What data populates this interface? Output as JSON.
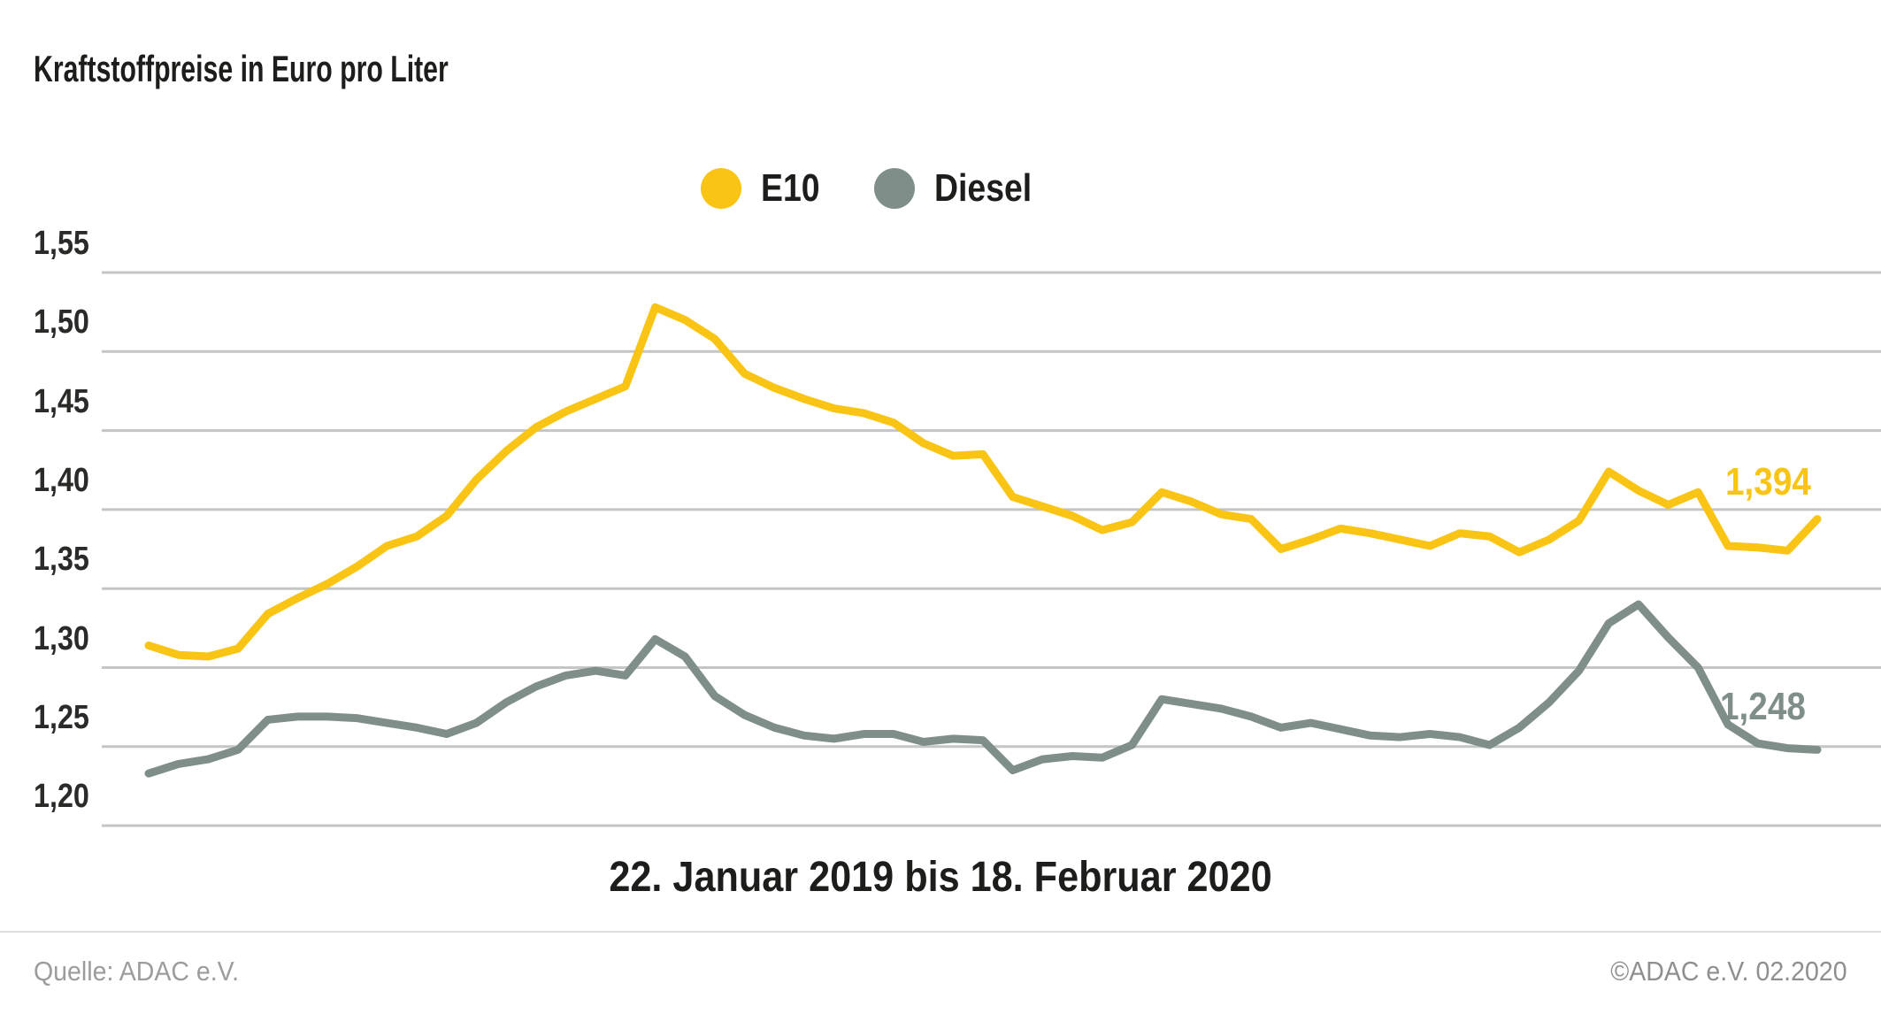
{
  "title": "Kraftstoffpreise in Euro pro Liter",
  "x_caption": "22. Januar 2019 bis 18. Februar 2020",
  "footer": {
    "source": "Quelle: ADAC e.V.",
    "copyright": "©ADAC e.V.  02.2020"
  },
  "colors": {
    "e10": "#f9c413",
    "diesel": "#7f8e88",
    "gridline": "#c4c6c5",
    "text_dark": "#1d1d1b"
  },
  "chart_data": {
    "type": "line",
    "title": "Kraftstoffpreise in Euro pro Liter",
    "xlabel": "22. Januar 2019 bis 18. Februar 2020",
    "ylabel": "Euro pro Liter",
    "grid": true,
    "legend_position": "top-center",
    "ylim": [
      1.175,
      1.575
    ],
    "yticks": [
      {
        "label": "1,55",
        "value": 1.55
      },
      {
        "label": "1,50",
        "value": 1.5
      },
      {
        "label": "1,45",
        "value": 1.45
      },
      {
        "label": "1,40",
        "value": 1.4
      },
      {
        "label": "1,35",
        "value": 1.35
      },
      {
        "label": "1,30",
        "value": 1.3
      },
      {
        "label": "1,25",
        "value": 1.25
      },
      {
        "label": "1,20",
        "value": 1.2
      }
    ],
    "x_unit": "week",
    "x_points": 57,
    "series": [
      {
        "name": "E10",
        "color": "#f9c413",
        "end_label": "1,394",
        "values": [
          1.314,
          1.308,
          1.307,
          1.312,
          1.334,
          1.344,
          1.353,
          1.364,
          1.377,
          1.383,
          1.396,
          1.419,
          1.437,
          1.452,
          1.462,
          1.47,
          1.478,
          1.528,
          1.52,
          1.508,
          1.486,
          1.477,
          1.47,
          1.464,
          1.461,
          1.455,
          1.442,
          1.434,
          1.435,
          1.408,
          1.402,
          1.396,
          1.387,
          1.392,
          1.411,
          1.405,
          1.397,
          1.394,
          1.375,
          1.381,
          1.388,
          1.385,
          1.381,
          1.377,
          1.385,
          1.383,
          1.373,
          1.381,
          1.393,
          1.424,
          1.412,
          1.403,
          1.411,
          1.377,
          1.376,
          1.374,
          1.394
        ]
      },
      {
        "name": "Diesel",
        "color": "#7f8e88",
        "end_label": "1,248",
        "values": [
          1.233,
          1.239,
          1.242,
          1.248,
          1.267,
          1.269,
          1.269,
          1.268,
          1.265,
          1.262,
          1.258,
          1.265,
          1.278,
          1.288,
          1.295,
          1.298,
          1.295,
          1.318,
          1.307,
          1.282,
          1.27,
          1.262,
          1.257,
          1.255,
          1.258,
          1.258,
          1.253,
          1.255,
          1.254,
          1.235,
          1.242,
          1.244,
          1.243,
          1.251,
          1.28,
          1.277,
          1.274,
          1.269,
          1.262,
          1.265,
          1.261,
          1.257,
          1.256,
          1.258,
          1.256,
          1.251,
          1.262,
          1.278,
          1.298,
          1.328,
          1.34,
          1.319,
          1.3,
          1.264,
          1.252,
          1.249,
          1.248
        ]
      }
    ]
  }
}
